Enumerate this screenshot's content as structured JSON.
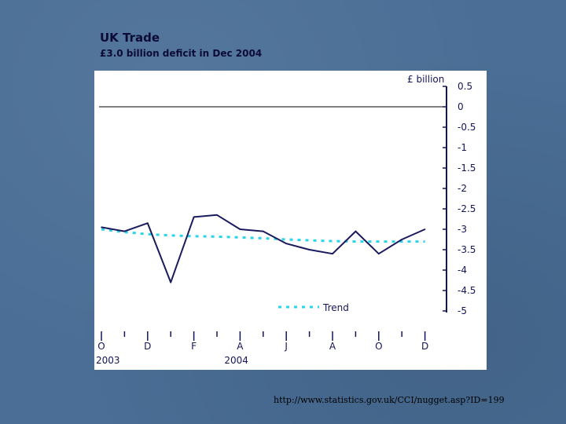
{
  "slide": {
    "title": "UK Trade",
    "subtitle": "£3.0 billion deficit in Dec 2004",
    "source_url": "http://www.statistics.gov.uk/CCI/nugget.asp?ID=199"
  },
  "colors": {
    "series_line": "#1a1a5e",
    "trend_line": "#2ad4e8",
    "zero_line": "#000000",
    "axis": "#14145a"
  },
  "chart_data": {
    "type": "line",
    "title": "UK Trade",
    "subtitle": "£3.0 billion deficit in Dec 2004",
    "ylabel": "£ billion",
    "ylim": [
      -5,
      0.5
    ],
    "yticks": [
      0.5,
      0,
      -0.5,
      -1,
      -1.5,
      -2,
      -2.5,
      -3,
      -3.5,
      -4,
      -4.5,
      -5
    ],
    "ytick_labels": [
      "0.5",
      "0",
      "-0.5",
      "-1",
      "-1.5",
      "-2",
      "-2.5",
      "-3",
      "-3.5",
      "-4",
      "-4.5",
      "-5"
    ],
    "x": [
      "Oct 2003",
      "Nov 2003",
      "Dec 2003",
      "Jan 2004",
      "Feb 2004",
      "Mar 2004",
      "Apr 2004",
      "May 2004",
      "Jun 2004",
      "Jul 2004",
      "Aug 2004",
      "Sep 2004",
      "Oct 2004",
      "Nov 2004",
      "Dec 2004"
    ],
    "xtick_labels": [
      "O",
      "",
      "D",
      "",
      "F",
      "",
      "A",
      "",
      "J",
      "",
      "A",
      "",
      "O",
      "",
      "D"
    ],
    "year_labels": [
      {
        "label": "2003",
        "at": "Oct 2003"
      },
      {
        "label": "2004",
        "at": "Apr 2004"
      }
    ],
    "series": [
      {
        "values": [
          -2.95,
          -3.05,
          -2.85,
          -4.3,
          -2.7,
          -2.65,
          -3.0,
          -3.05,
          -3.35,
          -3.5,
          -3.6,
          -3.05,
          -3.6,
          -3.25,
          -3.0
        ]
      },
      {
        "name": "Trend",
        "style": "dotted",
        "values": [
          -3.0,
          -3.07,
          -3.12,
          -3.15,
          -3.17,
          -3.18,
          -3.2,
          -3.22,
          -3.25,
          -3.27,
          -3.29,
          -3.3,
          -3.3,
          -3.3,
          -3.3
        ]
      }
    ],
    "legend": {
      "position": "bottom-right",
      "entries": [
        "Trend"
      ]
    },
    "zero_line": true,
    "grid": false
  }
}
